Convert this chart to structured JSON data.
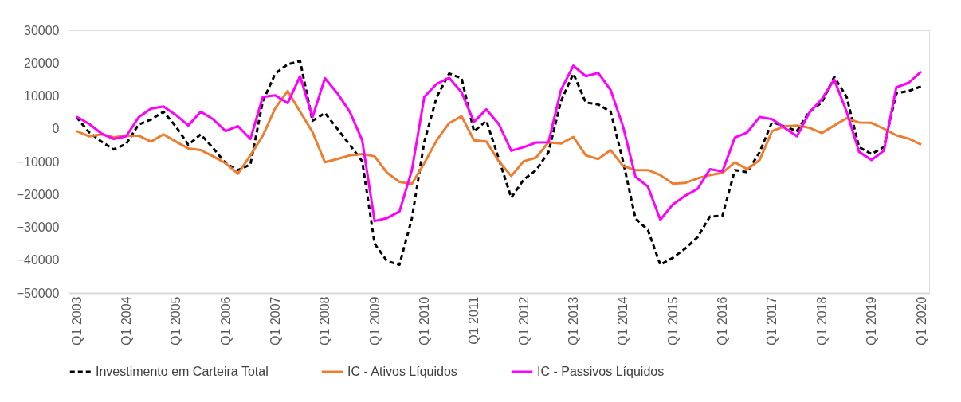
{
  "chart_data": {
    "type": "line",
    "categories": [
      "Q1 2003",
      null,
      null,
      null,
      "Q1 2004",
      null,
      null,
      null,
      "Q1 2005",
      null,
      null,
      null,
      "Q1 2006",
      null,
      null,
      null,
      "Q1 2007",
      null,
      null,
      null,
      "Q1 2008",
      null,
      null,
      null,
      "Q1 2009",
      null,
      null,
      null,
      "Q1 2010",
      null,
      null,
      null,
      "Q1 2011",
      null,
      null,
      null,
      "Q1 2012",
      null,
      null,
      null,
      "Q1 2013",
      null,
      null,
      null,
      "Q1 2014",
      null,
      null,
      null,
      "Q1 2015",
      null,
      null,
      null,
      "Q1 2016",
      null,
      null,
      null,
      "Q1 2017",
      null,
      null,
      null,
      "Q1 2018",
      null,
      null,
      null,
      "Q1 2019",
      null,
      null,
      null,
      "Q1 2020"
    ],
    "series": [
      {
        "name": "Investimento em Carteira Total",
        "color": "#000000",
        "line_style": "dashed",
        "values": [
          3500,
          -1000,
          -3900,
          -6300,
          -4600,
          1300,
          2800,
          5200,
          700,
          -4900,
          -1700,
          -5900,
          -10500,
          -12600,
          -10900,
          8400,
          16800,
          19600,
          20600,
          2400,
          4800,
          0,
          -4900,
          -9900,
          -35000,
          -40300,
          -41400,
          -27300,
          -4000,
          9700,
          16800,
          15400,
          -800,
          2400,
          -9200,
          -21000,
          -15500,
          -12600,
          -7100,
          8400,
          16800,
          8000,
          7400,
          5200,
          -9900,
          -27300,
          -30800,
          -41400,
          -39300,
          -36500,
          -33000,
          -26700,
          -26500,
          -12600,
          -13200,
          -7100,
          2100,
          700,
          -700,
          5200,
          8000,
          15800,
          9700,
          -5600,
          -7700,
          -5600,
          10800,
          11500,
          12900
        ]
      },
      {
        "name": "IC - Ativos Líquidos",
        "color": "#ed7d31",
        "line_style": "solid",
        "values": [
          -700,
          -2300,
          -1700,
          -2600,
          -2100,
          -2100,
          -3900,
          -1700,
          -3900,
          -6000,
          -6500,
          -8400,
          -10500,
          -13700,
          -8100,
          -2100,
          6300,
          11500,
          5200,
          -1000,
          -10200,
          -9200,
          -8100,
          -7700,
          -8400,
          -13400,
          -16200,
          -16800,
          -10500,
          -3500,
          1700,
          3800,
          -3500,
          -3900,
          -9900,
          -14400,
          -9900,
          -8800,
          -4100,
          -4500,
          -2500,
          -8100,
          -9200,
          -6500,
          -11300,
          -12600,
          -12600,
          -14100,
          -16700,
          -16500,
          -15100,
          -14100,
          -13400,
          -10200,
          -12300,
          -9500,
          -700,
          700,
          1000,
          300,
          -1300,
          1000,
          3200,
          1900,
          1800,
          0,
          -2000,
          -3000,
          -4800
        ]
      },
      {
        "name": "IC - Passivos Líquidos",
        "color": "#ff00ff",
        "line_style": "solid",
        "values": [
          3700,
          1500,
          -1400,
          -3100,
          -2300,
          3500,
          6100,
          6800,
          4200,
          1000,
          5200,
          2900,
          -700,
          800,
          -3100,
          9700,
          10200,
          7800,
          16000,
          3500,
          15400,
          10800,
          5200,
          -3500,
          -28100,
          -27200,
          -25200,
          -12600,
          9700,
          13700,
          15500,
          11100,
          2100,
          5900,
          1400,
          -6700,
          -5600,
          -4200,
          -4100,
          11800,
          19200,
          16000,
          17000,
          11800,
          700,
          -14600,
          -17600,
          -27700,
          -23100,
          -20400,
          -18300,
          -12300,
          -13000,
          -2700,
          -1100,
          3600,
          2900,
          300,
          -2300,
          4900,
          9000,
          15000,
          5200,
          -7000,
          -9500,
          -6700,
          12600,
          14000,
          17400
        ]
      }
    ],
    "ylim": [
      -50000,
      30000
    ],
    "yticks": [
      -50000,
      -40000,
      -30000,
      -20000,
      -10000,
      0,
      10000,
      20000,
      30000
    ],
    "grid": false,
    "legend": "bottom"
  }
}
